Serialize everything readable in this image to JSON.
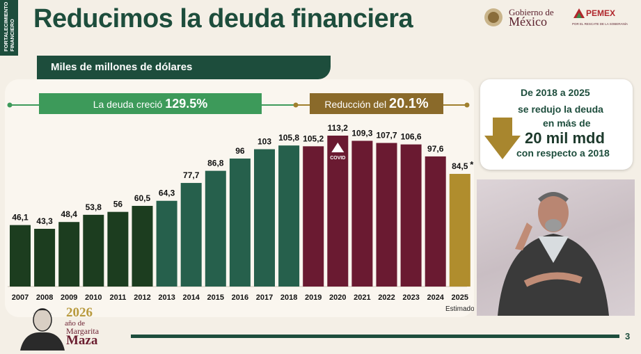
{
  "side_tab": "FORTALECIMIENTO\nFINANCIERO",
  "title": "Reducimos la deuda financiera",
  "logos": {
    "gobierno_line1": "Gobierno de",
    "gobierno_line2": "México",
    "pemex": "PEMEX",
    "pemex_sub": "POR EL RESCATE DE LA SOBERANÍA"
  },
  "unit_label": "Miles de millones de dólares",
  "growth_label": {
    "text": "La deuda creció ",
    "value": "129.5%"
  },
  "reduction_label": {
    "text": "Reducción del ",
    "value": "20.1%"
  },
  "covid_label": "COVID",
  "estimated_label": "Estimado",
  "colors": {
    "early": "#1c3d1f",
    "growth": "#26604c",
    "peak": "#6a1a31",
    "estimate": "#b08d2d",
    "growth_box": "#3d9a5a",
    "reduction_box": "#8a6a2a",
    "line_green": "#3d9a5a",
    "line_gold": "#a0802e"
  },
  "chart_data": {
    "type": "bar",
    "title": "Reducimos la deuda financiera",
    "ylabel": "Miles de millones de dólares",
    "ylim": [
      0,
      120
    ],
    "categories": [
      "2007",
      "2008",
      "2009",
      "2010",
      "2011",
      "2012",
      "2013",
      "2014",
      "2015",
      "2016",
      "2017",
      "2018",
      "2019",
      "2020",
      "2021",
      "2022",
      "2023",
      "2024",
      "2025"
    ],
    "values": [
      46.1,
      43.3,
      48.4,
      53.8,
      56,
      60.5,
      64.3,
      77.7,
      86.8,
      96,
      103,
      105.8,
      105.2,
      113.2,
      109.3,
      107.7,
      106.6,
      97.6,
      84.5
    ],
    "labels": [
      "46,1",
      "43,3",
      "48,4",
      "53,8",
      "56",
      "60,5",
      "64,3",
      "77,7",
      "86,8",
      "96",
      "103",
      "105,8",
      "105,2",
      "113,2",
      "109,3",
      "107,7",
      "106,6",
      "97,6",
      "84,5"
    ],
    "groups": [
      "early",
      "early",
      "early",
      "early",
      "early",
      "early",
      "growth",
      "growth",
      "growth",
      "growth",
      "growth",
      "growth",
      "peak",
      "peak",
      "peak",
      "peak",
      "peak",
      "peak",
      "estimate"
    ],
    "annotations": [
      "*"
    ]
  },
  "info": {
    "line1": "De 2018 a 2025",
    "line2": "se redujo la deuda",
    "line3": "en más de",
    "line4": "20 mil mdd",
    "line5": "con respecto a 2018"
  },
  "footer": {
    "year": "2026",
    "anio": "año de",
    "name1": "Margarita",
    "name2": "Maza",
    "page": "3"
  }
}
